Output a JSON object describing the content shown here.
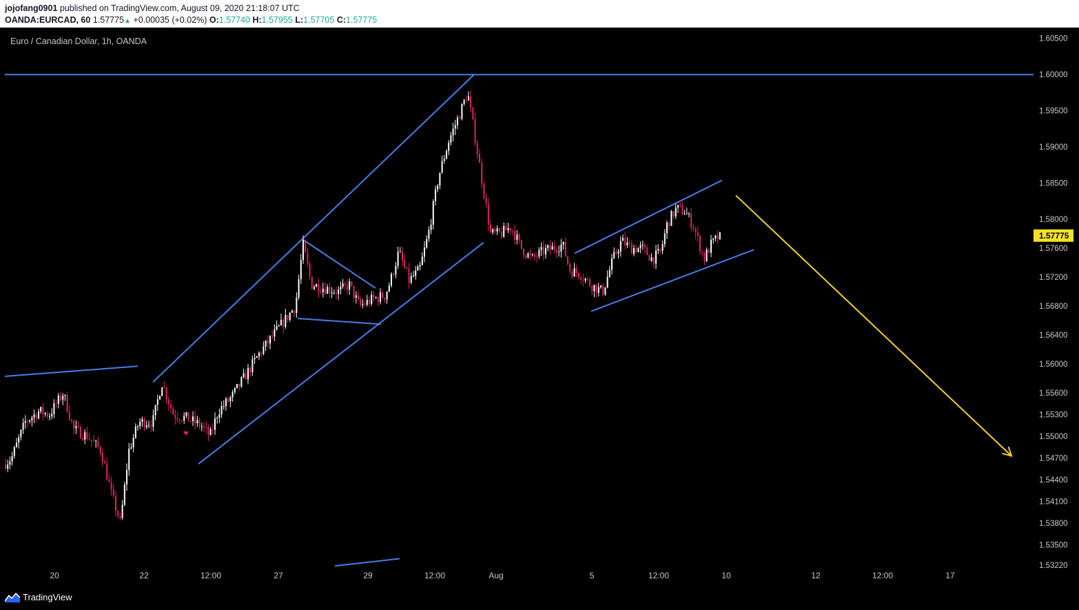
{
  "header": {
    "user": "jojofang0901",
    "published_text": "published on TradingView.com, August 09, 2020 21:18:07 UTC",
    "symbol": "OANDA:EURCAD, 60",
    "last": "1.57775",
    "change_arrow": "▲",
    "change": "+0.00035 (+0.02%)",
    "o_label": "O:",
    "o_value": "1.57740",
    "h_label": "H:",
    "h_value": "1.57955",
    "l_label": "L:",
    "l_value": "1.57705",
    "c_label": "C:",
    "c_value": "1.57775"
  },
  "footer": {
    "brand": "TradingView"
  },
  "chart_data": {
    "type": "candlestick",
    "title": "Euro / Canadian Dollar, 1h, OANDA",
    "y_range": [
      1.5322,
      1.6065
    ],
    "y_ticks": [
      "1.60500",
      "1.60000",
      "1.59500",
      "1.59000",
      "1.58500",
      "1.58000",
      "1.57600",
      "1.57200",
      "1.56800",
      "1.56400",
      "1.56000",
      "1.55600",
      "1.55300",
      "1.55000",
      "1.54700",
      "1.54400",
      "1.54100",
      "1.53800",
      "1.53500",
      "1.53220"
    ],
    "x_ticks": [
      "20",
      "22",
      "12:00",
      "27",
      "29",
      "12:00",
      "Aug",
      "5",
      "12:00",
      "10",
      "12",
      "12:00",
      "17"
    ],
    "last_price": "1.57775",
    "price_path": [
      [
        0,
        1.5455
      ],
      [
        20,
        1.547
      ],
      [
        40,
        1.552
      ],
      [
        60,
        1.5535
      ],
      [
        75,
        1.553
      ],
      [
        95,
        1.556
      ],
      [
        110,
        1.551
      ],
      [
        130,
        1.55
      ],
      [
        150,
        1.548
      ],
      [
        165,
        1.542
      ],
      [
        178,
        1.538
      ],
      [
        190,
        1.548
      ],
      [
        205,
        1.552
      ],
      [
        225,
        1.552
      ],
      [
        238,
        1.5575
      ],
      [
        255,
        1.553
      ],
      [
        275,
        1.5525
      ],
      [
        295,
        1.5515
      ],
      [
        308,
        1.55
      ],
      [
        320,
        1.5535
      ],
      [
        340,
        1.5555
      ],
      [
        360,
        1.5585
      ],
      [
        380,
        1.5615
      ],
      [
        400,
        1.564
      ],
      [
        420,
        1.5665
      ],
      [
        432,
        1.568
      ],
      [
        443,
        1.5765
      ],
      [
        455,
        1.571
      ],
      [
        475,
        1.5705
      ],
      [
        495,
        1.57
      ],
      [
        510,
        1.571
      ],
      [
        525,
        1.568
      ],
      [
        545,
        1.569
      ],
      [
        562,
        1.5695
      ],
      [
        570,
        1.5715
      ],
      [
        582,
        1.5755
      ],
      [
        597,
        1.5715
      ],
      [
        612,
        1.573
      ],
      [
        625,
        1.578
      ],
      [
        640,
        1.586
      ],
      [
        655,
        1.591
      ],
      [
        668,
        1.594
      ],
      [
        682,
        1.5975
      ],
      [
        695,
        1.59
      ],
      [
        705,
        1.584
      ],
      [
        715,
        1.578
      ],
      [
        730,
        1.578
      ],
      [
        745,
        1.579
      ],
      [
        760,
        1.576
      ],
      [
        775,
        1.5745
      ],
      [
        790,
        1.5755
      ],
      [
        805,
        1.576
      ],
      [
        820,
        1.5765
      ],
      [
        830,
        1.573
      ],
      [
        845,
        1.5725
      ],
      [
        860,
        1.571
      ],
      [
        878,
        1.57
      ],
      [
        893,
        1.5745
      ],
      [
        905,
        1.577
      ],
      [
        920,
        1.576
      ],
      [
        935,
        1.576
      ],
      [
        950,
        1.5745
      ],
      [
        962,
        1.5755
      ],
      [
        972,
        1.5795
      ],
      [
        985,
        1.5815
      ],
      [
        998,
        1.581
      ],
      [
        1010,
        1.579
      ],
      [
        1025,
        1.5745
      ],
      [
        1035,
        1.5765
      ],
      [
        1045,
        1.5775
      ]
    ],
    "drawings": [
      {
        "kind": "horizontal",
        "price": 1.6,
        "color": "#4a7de8"
      },
      {
        "kind": "trend",
        "x": [
          7,
          200
        ],
        "y": [
          1.5583,
          1.5597
        ],
        "color": "#4a7de8"
      },
      {
        "kind": "trend",
        "x": [
          222,
          688
        ],
        "y": [
          1.5575,
          1.6
        ],
        "color": "#4a7de8"
      },
      {
        "kind": "trend",
        "x": [
          288,
          702
        ],
        "y": [
          1.5462,
          1.5768
        ],
        "color": "#4a7de8"
      },
      {
        "kind": "trend",
        "x": [
          441,
          545
        ],
        "y": [
          1.5771,
          1.5705
        ],
        "color": "#4a7de8"
      },
      {
        "kind": "trend",
        "x": [
          432,
          553
        ],
        "y": [
          1.5663,
          1.5655
        ],
        "color": "#4a7de8"
      },
      {
        "kind": "trend",
        "x": [
          834,
          1048
        ],
        "y": [
          1.5753,
          1.5854
        ],
        "color": "#4a7de8"
      },
      {
        "kind": "trend",
        "x": [
          858,
          1094
        ],
        "y": [
          1.5673,
          1.5758
        ],
        "color": "#4a7de8"
      },
      {
        "kind": "trend",
        "x": [
          486,
          580
        ],
        "y": [
          1.5321,
          1.5331
        ],
        "color": "#4a7de8"
      },
      {
        "kind": "arrow",
        "x": [
          1068,
          1468
        ],
        "y": [
          1.5833,
          1.5473
        ],
        "color": "#f0d22a"
      }
    ],
    "candle_up_color": "#ffffff",
    "candle_down_color": "#e0245e",
    "grid": false,
    "axis_text_color": "#c8c8c8",
    "price_label_color": "#f5e121"
  }
}
